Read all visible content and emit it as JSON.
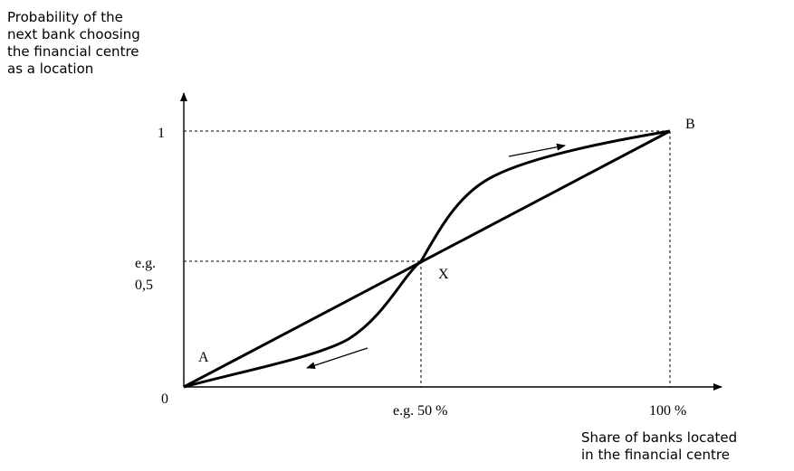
{
  "axes": {
    "y_title_lines": [
      "Probability of the",
      "next bank choosing",
      "the financial centre",
      "as a location"
    ],
    "x_title_lines": [
      "Share of banks located",
      "in the financial centre"
    ],
    "origin_label": "0",
    "y_tick_one": "1",
    "y_tick_half_line1": "e.g.",
    "y_tick_half_line2": "0,5",
    "x_tick_half": "e.g. 50 %",
    "x_tick_full": "100 %"
  },
  "points": {
    "a_label": "A",
    "b_label": "B",
    "x_label": "X"
  },
  "style": {
    "line_color": "#000000",
    "background": "#ffffff"
  }
}
